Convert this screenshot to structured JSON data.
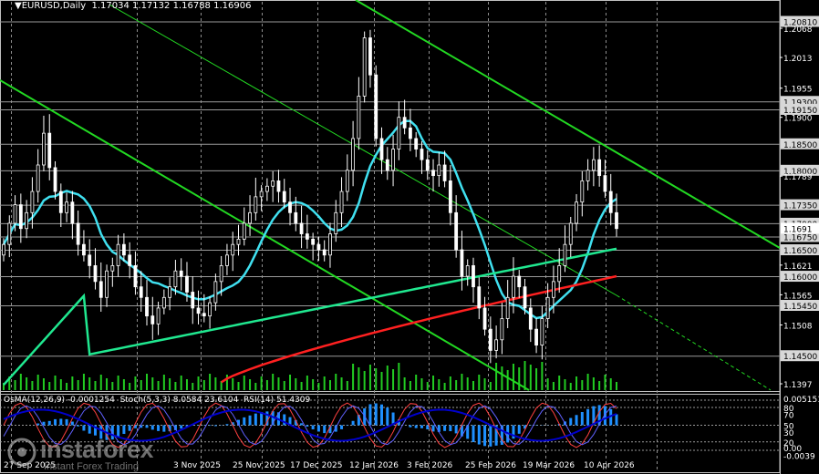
{
  "header": {
    "symbol": "EURUSD,Daily",
    "ohlc": "1.17034 1.17132 1.16788 1.16906"
  },
  "indicator_header": "OsMA(12,26,9) -0.0001254  Stoch(5,3,3) 8.0584 23.6104  RSI(14) 51.4309",
  "watermark": {
    "name": "instaforex",
    "tagline": "Instant Forex Trading"
  },
  "colors": {
    "background": "#000000",
    "grid": "#8f8f8f",
    "bull_bear_candles": "#ffffff",
    "ma_short": "#40e0f0",
    "ma_mid": "#20e890",
    "ma_long": "#ff2020",
    "channel": "#22d822",
    "volume": "#22cc22",
    "osma": "#1e90ff",
    "stoch_main": "#ff4040",
    "stoch_signal": "#6060ff",
    "rsi": "#0000cc"
  },
  "chart_data": [
    {
      "type": "candlestick",
      "title": "EURUSD,Daily",
      "price_axis_labels": [
        "1.20810",
        "1.2068",
        "1.2013",
        "1.19300",
        "1.19150",
        "1.1955",
        "1.1900",
        "1.18500",
        "1.18000",
        "1.1789",
        "1.17350",
        "1.17000",
        "1.16750",
        "1.16500",
        "1.1621",
        "1.16000",
        "1.1565",
        "1.15450",
        "1.1508",
        "1.14500",
        "1.1397"
      ],
      "key_levels": [
        1.2081,
        1.193,
        1.1915,
        1.185,
        1.18,
        1.1735,
        1.17,
        1.1675,
        1.165,
        1.16,
        1.1545,
        1.145
      ],
      "current_price": 1.16906,
      "x_tick_labels": [
        "27 Sep 2025",
        "3 Nov 2025",
        "25 Nov 2025",
        "17 Dec 2025",
        "12 Jan 2026",
        "3 Feb 2026",
        "25 Feb 2026",
        "19 Mar 2026",
        "10 Apr 2026"
      ],
      "ylim": [
        1.1385,
        1.2118
      ],
      "close_series": [
        1.166,
        1.17,
        1.1735,
        1.169,
        1.172,
        1.176,
        1.181,
        1.187,
        1.1805,
        1.176,
        1.172,
        1.174,
        1.17,
        1.166,
        1.164,
        1.162,
        1.159,
        1.156,
        1.161,
        1.162,
        1.166,
        1.164,
        1.162,
        1.158,
        1.156,
        1.1525,
        1.151,
        1.154,
        1.156,
        1.158,
        1.161,
        1.16,
        1.157,
        1.154,
        1.153,
        1.1525,
        1.155,
        1.159,
        1.162,
        1.164,
        1.166,
        1.167,
        1.17,
        1.172,
        1.175,
        1.176,
        1.177,
        1.178,
        1.176,
        1.174,
        1.172,
        1.17,
        1.168,
        1.167,
        1.166,
        1.165,
        1.164,
        1.168,
        1.172,
        1.176,
        1.18,
        1.186,
        1.194,
        1.205,
        1.198,
        1.186,
        1.182,
        1.18,
        1.184,
        1.19,
        1.188,
        1.186,
        1.184,
        1.182,
        1.18,
        1.179,
        1.181,
        1.178,
        1.172,
        1.165,
        1.16,
        1.162,
        1.158,
        1.154,
        1.15,
        1.146,
        1.148,
        1.152,
        1.156,
        1.16,
        1.158,
        1.154,
        1.15,
        1.147,
        1.152,
        1.156,
        1.159,
        1.162,
        1.166,
        1.17,
        1.174,
        1.178,
        1.18,
        1.182,
        1.179,
        1.176,
        1.172,
        1.169
      ],
      "overlays": [
        {
          "name": "short MA",
          "color": "cyan"
        },
        {
          "name": "mid MA",
          "color": "green"
        },
        {
          "name": "long MA",
          "color": "red"
        }
      ],
      "subplot": {
        "type": "oscillator",
        "axis_labels": [
          "0.005151",
          "80",
          "70",
          "50",
          "30",
          "20",
          "0.00",
          "-0.0039"
        ]
      }
    }
  ]
}
